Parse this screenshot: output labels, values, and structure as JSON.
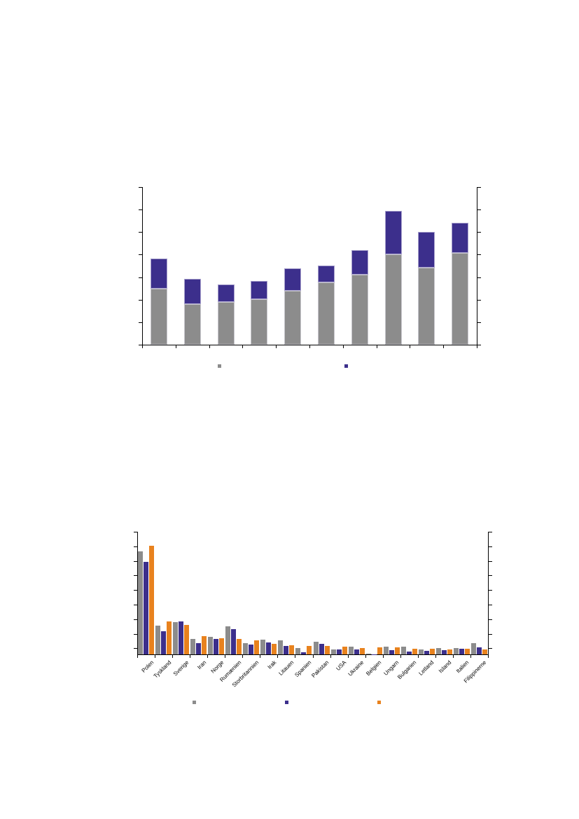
{
  "document": {
    "page_background": "#ffffff"
  },
  "chart_data": [
    {
      "type": "bar",
      "stacked": true,
      "title": "",
      "categories": [
        "",
        "",
        "",
        "",
        "",
        "",
        "",
        "",
        "",
        ""
      ],
      "series": [
        {
          "name": "gray",
          "color": "#8C8C8C",
          "values": [
            2.5,
            1.8,
            1.91,
            2.01,
            2.4,
            2.76,
            3.1,
            4.0,
            3.41,
            4.07
          ]
        },
        {
          "name": "purple",
          "color": "#3C2F8C",
          "values": [
            1.32,
            1.13,
            0.77,
            0.83,
            0.98,
            0.76,
            1.09,
            1.94,
            1.61,
            1.34
          ]
        }
      ],
      "xlabel": "",
      "ylabel": "",
      "ylim": [
        0,
        7
      ],
      "gridlines": false,
      "legend_position": "bottom",
      "legend_labels": [
        "",
        ""
      ],
      "note": "values are in y-tick-interval units; axis tick labels, titles and legend captions are not visible in the source image"
    },
    {
      "type": "bar",
      "grouped": true,
      "title": "",
      "categories": [
        "Polen",
        "Tyskland",
        "Sverige",
        "Iran",
        "Norge",
        "Rumænien",
        "Storbritannien",
        "Irak",
        "Litauen",
        "Spanien",
        "Pakistan",
        "USA",
        "Ukraine",
        "Belgien",
        "Ungarn",
        "Bulgarien",
        "Letland",
        "Island",
        "Italien",
        "Filippinerne"
      ],
      "series": [
        {
          "name": "gray",
          "color": "#8C8C8C",
          "values": [
            7.09,
            2.0,
            2.21,
            1.08,
            1.19,
            1.92,
            0.79,
            1.03,
            0.95,
            0.43,
            0.87,
            0.35,
            0.55,
            0.06,
            0.52,
            0.52,
            0.32,
            0.43,
            0.43,
            0.79
          ]
        },
        {
          "name": "purple",
          "color": "#3C2F8C",
          "values": [
            6.39,
            1.61,
            2.29,
            0.79,
            1.05,
            1.72,
            0.68,
            0.84,
            0.59,
            0.16,
            0.71,
            0.32,
            0.35,
            0.02,
            0.3,
            0.19,
            0.23,
            0.28,
            0.4,
            0.47
          ]
        },
        {
          "name": "orange",
          "color": "#E8821E",
          "values": [
            7.47,
            2.26,
            2.04,
            1.27,
            1.13,
            1.06,
            0.95,
            0.71,
            0.63,
            0.59,
            0.57,
            0.52,
            0.43,
            0.47,
            0.47,
            0.39,
            0.39,
            0.35,
            0.39,
            0.35
          ]
        }
      ],
      "xlabel": "",
      "ylabel": "",
      "ylim": [
        0,
        8.45
      ],
      "gridlines": false,
      "legend_position": "bottom",
      "legend_labels": [
        "",
        "",
        ""
      ],
      "note": "values are in y-tick-interval units; y-axis tick labels, titles and legend captions are not visible in the source image"
    }
  ]
}
